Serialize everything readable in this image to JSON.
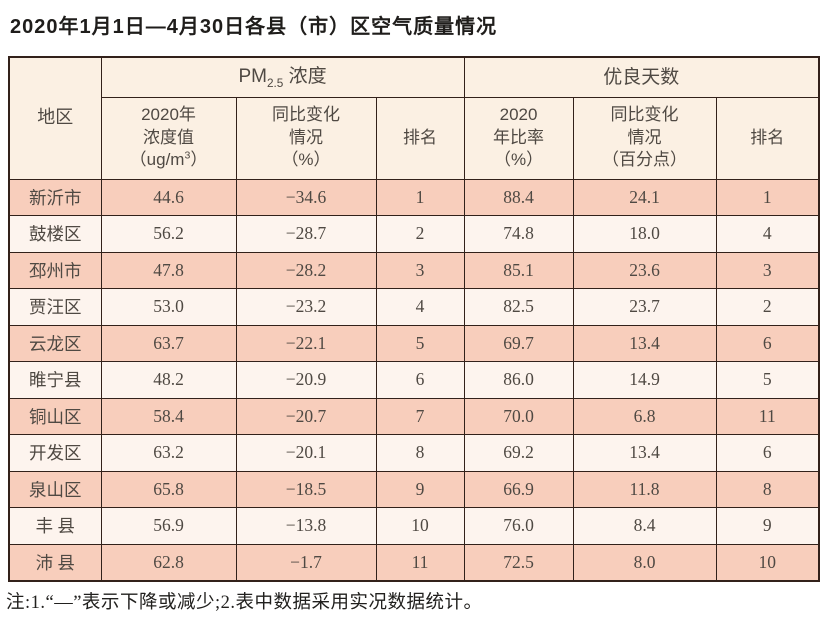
{
  "title": "2020年1月1日—4月30日各县（市）区空气质量情况",
  "colors": {
    "border": "#32211a",
    "header_bg": "#fbf0e3",
    "row_odd": "#f8cebc",
    "row_even": "#fdf4ee",
    "text": "#4f4943",
    "title_color": "#1f1d1b",
    "page_bg": "#ffffff"
  },
  "table": {
    "header": {
      "region": "地区",
      "pm25_group": {
        "prefix": "PM",
        "sub": "2.5",
        "suffix": " 浓度"
      },
      "good_days_group": "优良天数",
      "concentration": {
        "line1": "2020年",
        "line2": "浓度值",
        "line3_prefix": "（ug/m",
        "line3_sup": "3",
        "line3_suffix": "）"
      },
      "pm25_change": {
        "line1": "同比变化",
        "line2": "情况",
        "line3": "（%）"
      },
      "pm25_rank": "排名",
      "ratio": {
        "line1": "2020",
        "line2": "年比率",
        "line3": "（%）"
      },
      "ratio_change": {
        "line1": "同比变化",
        "line2": "情况",
        "line3": "（百分点）"
      },
      "good_rank": "排名"
    },
    "rows": [
      {
        "region": "新沂市",
        "pm25_value": "44.6",
        "pm25_change": "−34.6",
        "pm25_rank": "1",
        "ratio": "88.4",
        "ratio_change": "24.1",
        "rank": "1"
      },
      {
        "region": "鼓楼区",
        "pm25_value": "56.2",
        "pm25_change": "−28.7",
        "pm25_rank": "2",
        "ratio": "74.8",
        "ratio_change": "18.0",
        "rank": "4"
      },
      {
        "region": "邳州市",
        "pm25_value": "47.8",
        "pm25_change": "−28.2",
        "pm25_rank": "3",
        "ratio": "85.1",
        "ratio_change": "23.6",
        "rank": "3"
      },
      {
        "region": "贾汪区",
        "pm25_value": "53.0",
        "pm25_change": "−23.2",
        "pm25_rank": "4",
        "ratio": "82.5",
        "ratio_change": "23.7",
        "rank": "2"
      },
      {
        "region": "云龙区",
        "pm25_value": "63.7",
        "pm25_change": "−22.1",
        "pm25_rank": "5",
        "ratio": "69.7",
        "ratio_change": "13.4",
        "rank": "6"
      },
      {
        "region": "睢宁县",
        "pm25_value": "48.2",
        "pm25_change": "−20.9",
        "pm25_rank": "6",
        "ratio": "86.0",
        "ratio_change": "14.9",
        "rank": "5"
      },
      {
        "region": "铜山区",
        "pm25_value": "58.4",
        "pm25_change": "−20.7",
        "pm25_rank": "7",
        "ratio": "70.0",
        "ratio_change": "6.8",
        "rank": "11"
      },
      {
        "region": "开发区",
        "pm25_value": "63.2",
        "pm25_change": "−20.1",
        "pm25_rank": "8",
        "ratio": "69.2",
        "ratio_change": "13.4",
        "rank": "6"
      },
      {
        "region": "泉山区",
        "pm25_value": "65.8",
        "pm25_change": "−18.5",
        "pm25_rank": "9",
        "ratio": "66.9",
        "ratio_change": "11.8",
        "rank": "8"
      },
      {
        "region": "丰 县",
        "pm25_value": "56.9",
        "pm25_change": "−13.8",
        "pm25_rank": "10",
        "ratio": "76.0",
        "ratio_change": "8.4",
        "rank": "9"
      },
      {
        "region": "沛 县",
        "pm25_value": "62.8",
        "pm25_change": "−1.7",
        "pm25_rank": "11",
        "ratio": "72.5",
        "ratio_change": "8.0",
        "rank": "10"
      }
    ]
  },
  "note": "注:1.“—”表示下降或减少;2.表中数据采用实况数据统计。"
}
